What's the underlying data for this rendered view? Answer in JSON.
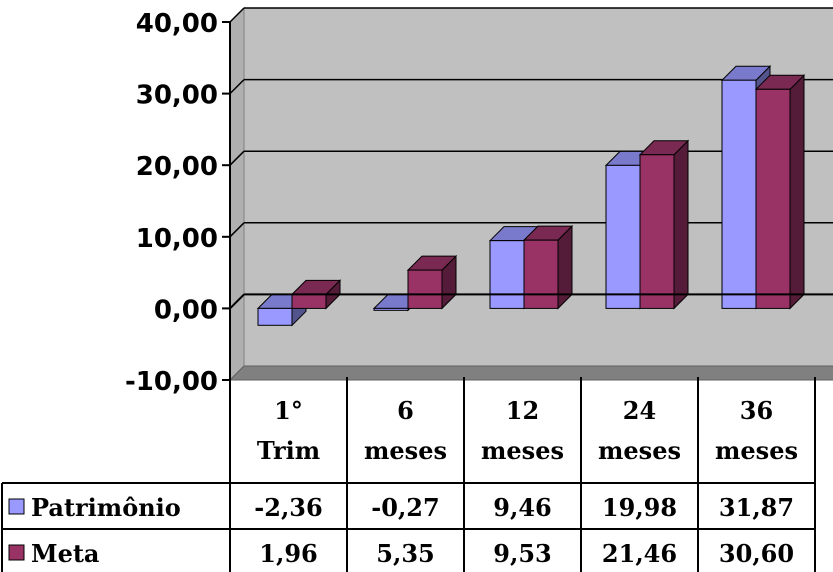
{
  "chart_data": {
    "type": "bar",
    "categories": [
      [
        "1°",
        "Trim"
      ],
      [
        "6",
        "meses"
      ],
      [
        "12",
        "meses"
      ],
      [
        "24",
        "meses"
      ],
      [
        "36",
        "meses"
      ]
    ],
    "series": [
      {
        "name": "Patrimônio",
        "values": [
          -2.36,
          -0.27,
          9.46,
          19.98,
          31.87
        ],
        "labels": [
          "-2,36",
          "-0,27",
          "9,46",
          "19,98",
          "31,87"
        ],
        "color": "#9999ff"
      },
      {
        "name": "Meta",
        "values": [
          1.96,
          5.35,
          9.53,
          21.46,
          30.6
        ],
        "labels": [
          "1,96",
          "5,35",
          "9,53",
          "21,46",
          "30,60"
        ],
        "color": "#993366"
      }
    ],
    "y_ticks": [
      "40,00",
      "30,00",
      "20,00",
      "10,00",
      "0,00",
      "-10,00"
    ],
    "y_tick_values": [
      40,
      30,
      20,
      10,
      0,
      -10
    ],
    "ylim": [
      -10,
      40
    ],
    "grid": true,
    "wall_color": "#c0c0c0",
    "legend_placement": "data-table"
  }
}
